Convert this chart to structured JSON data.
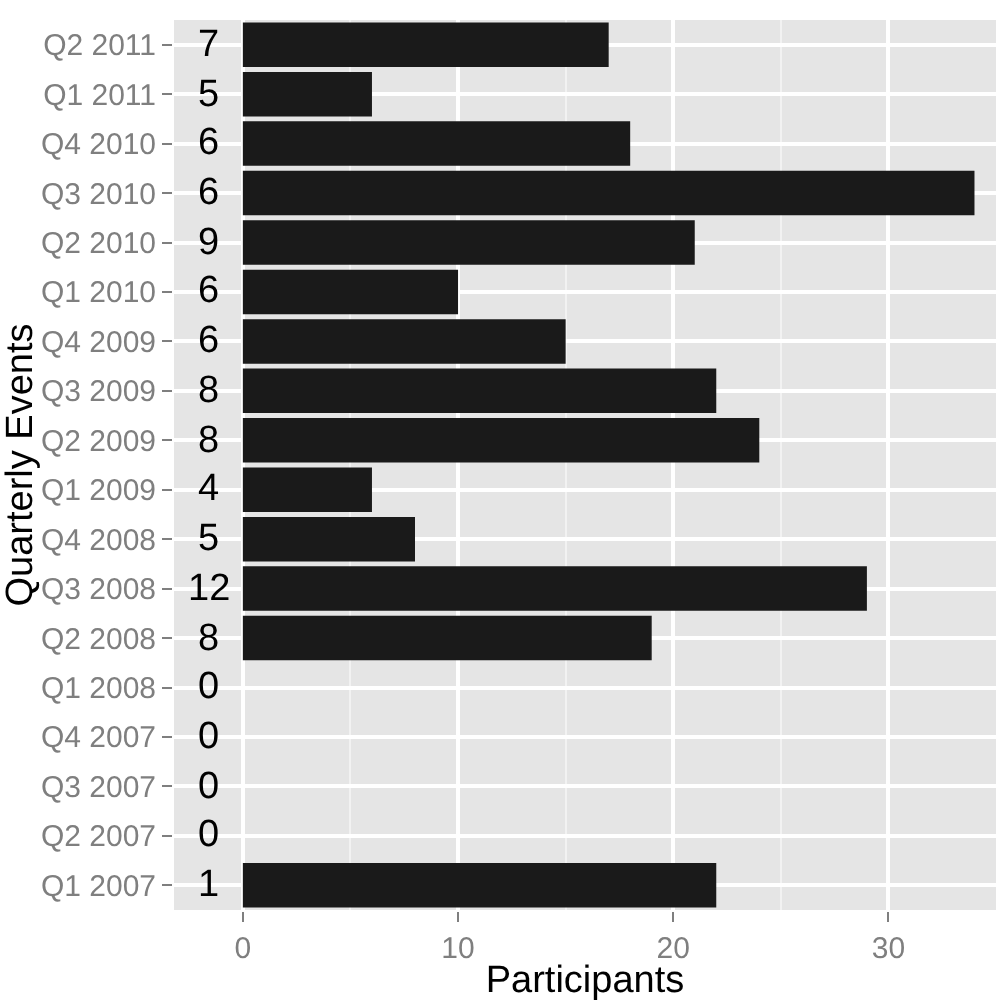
{
  "chart_data": {
    "type": "bar",
    "orientation": "horizontal",
    "xlabel": "Participants",
    "ylabel": "Quarterly Events",
    "categories": [
      "Q2 2011",
      "Q1 2011",
      "Q4 2010",
      "Q3 2010",
      "Q2 2010",
      "Q1 2010",
      "Q4 2009",
      "Q3 2009",
      "Q2 2009",
      "Q1 2009",
      "Q4 2008",
      "Q3 2008",
      "Q2 2008",
      "Q1 2008",
      "Q4 2007",
      "Q3 2007",
      "Q2 2007",
      "Q1 2007"
    ],
    "values": [
      17,
      6,
      18,
      34,
      21,
      10,
      15,
      22,
      24,
      6,
      8,
      29,
      19,
      0,
      0,
      0,
      0,
      22
    ],
    "color": "#1a1a1a",
    "xlim": [
      -3.2,
      35
    ],
    "xticks": [
      0,
      10,
      20,
      30
    ],
    "grid": true,
    "annotations": [
      "7",
      "5",
      "6",
      "6",
      "9",
      "6",
      "6",
      "8",
      "8",
      "4",
      "5",
      "12",
      "8",
      "0",
      "0",
      "0",
      "0",
      "1"
    ]
  }
}
